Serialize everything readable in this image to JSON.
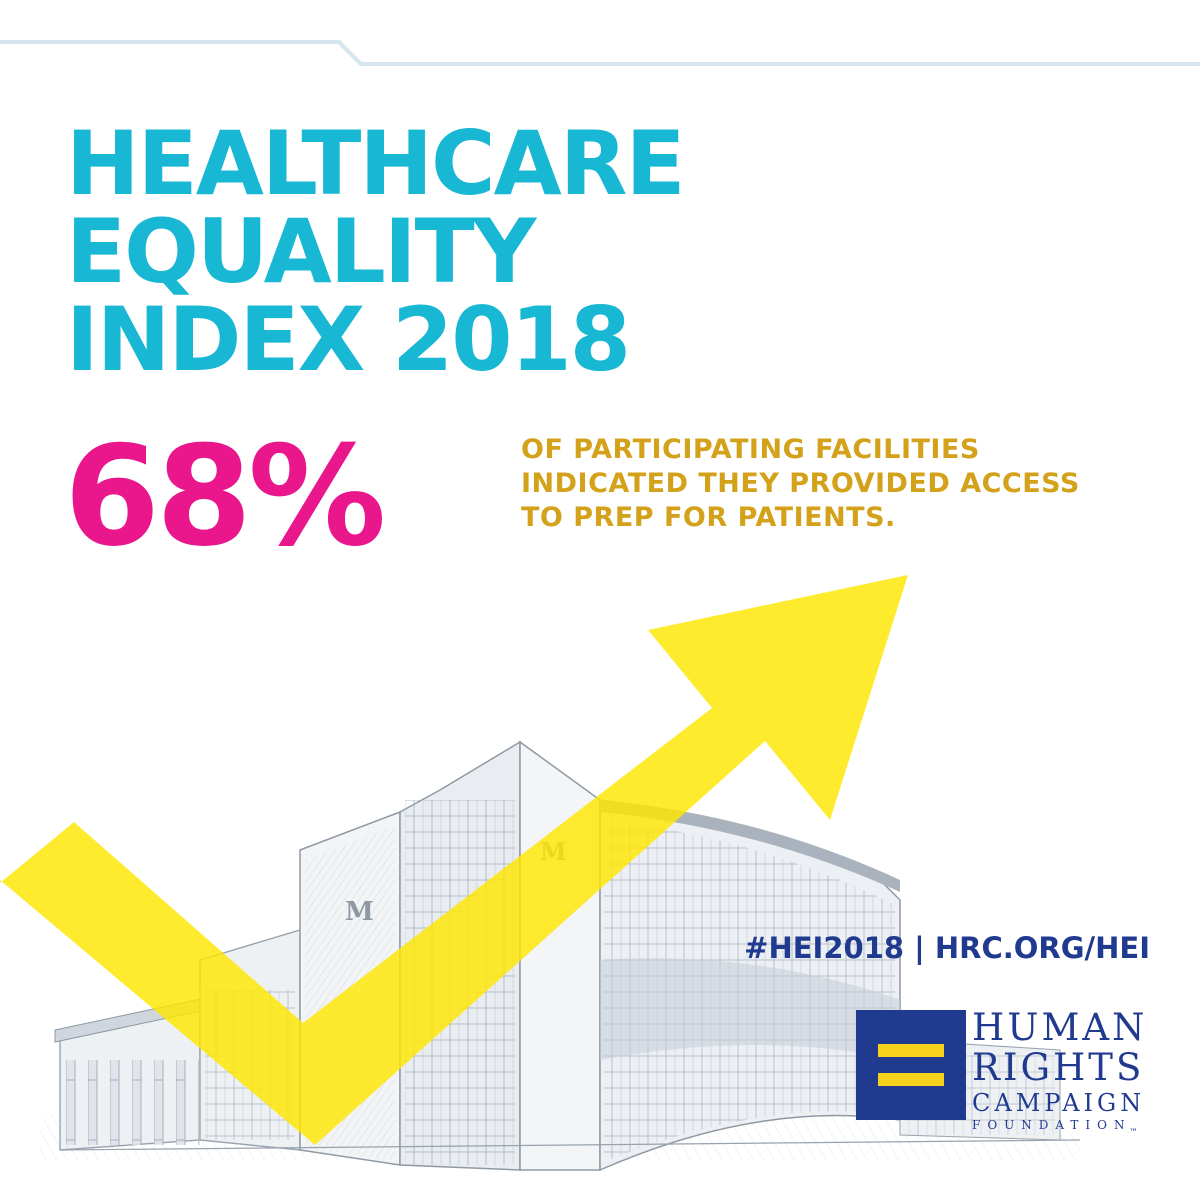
{
  "headline": [
    "HEALTHCARE",
    "EQUALITY",
    "INDEX 2018"
  ],
  "stat": {
    "value": "68%",
    "caption": [
      "OF PARTICIPATING FACILITIES",
      "INDICATED THEY PROVIDED ACCESS",
      "TO PREP FOR PATIENTS."
    ]
  },
  "footer": {
    "hashtag_link": "#HEI2018 | HRC.ORG/HEI"
  },
  "logo": {
    "line1": "HUMAN",
    "line2": "RIGHTS",
    "line3": "CAMPAIGN",
    "line4": "FOUNDATION",
    "trademark": "™"
  },
  "colors": {
    "headline": "#18b7d3",
    "stat": "#e9168c",
    "caption": "#d4a21a",
    "arrow": "#ffe600",
    "brand_blue": "#1f3a8f",
    "brand_yellow": "#f5d11c"
  },
  "icons": [
    "upward-trend-arrow",
    "hospital-building-illustration",
    "hrc-equality-logo"
  ]
}
